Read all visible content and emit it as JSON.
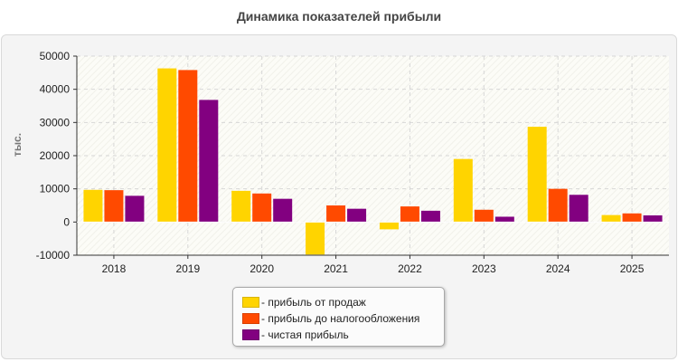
{
  "chart_data": {
    "type": "bar",
    "title": "Динамика показателей прибыли",
    "xlabel": "",
    "ylabel": "тыс.",
    "categories": [
      "2018",
      "2019",
      "2020",
      "2021",
      "2022",
      "2023",
      "2024",
      "2025"
    ],
    "series": [
      {
        "name": "прибыль от продаж",
        "color": "#ffd400",
        "values": [
          9700,
          46300,
          9400,
          -9800,
          -2200,
          19000,
          28700,
          2100
        ]
      },
      {
        "name": "прибыль до налогообложения",
        "color": "#ff4a00",
        "values": [
          9600,
          45800,
          8600,
          5000,
          4700,
          3700,
          10000,
          2600
        ]
      },
      {
        "name": "чистая прибыль",
        "color": "#820080",
        "values": [
          7900,
          36800,
          7000,
          4000,
          3400,
          1600,
          8200,
          2000
        ]
      }
    ],
    "ylim": [
      -10000,
      50000
    ],
    "yticks": [
      -10000,
      0,
      10000,
      20000,
      30000,
      40000,
      50000
    ],
    "grid": true,
    "legend_position": "bottom-center",
    "legend_prefix": "- "
  }
}
